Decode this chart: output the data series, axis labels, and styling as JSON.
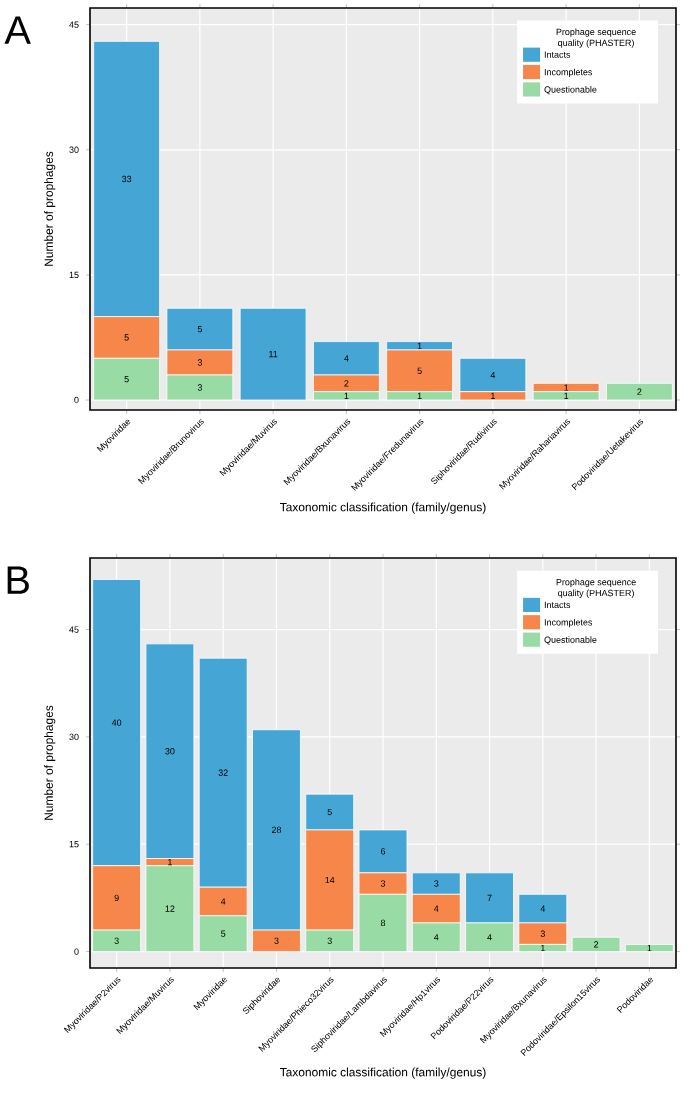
{
  "chart_data": [
    {
      "type": "bar",
      "stacked": true,
      "annotations": [
        "A"
      ],
      "xlabel": "Taxonomic classification (family/genus)",
      "ylabel": "Number of prophages",
      "legend_title": "Prophage sequence quality (PHASTER)",
      "legend": "top right",
      "grid": true,
      "data_labels": true,
      "categories": [
        "Myoviridae",
        "Myoviridae/Brunovirus",
        "Myoviridae/Muvirus",
        "Myoviridae/Bxunavirus",
        "Myoviridae/Fredunavirus",
        "Siphoviridae/Rudivirus",
        "Myoviridae/Rahariavirus",
        "Podoviridae/Uetakevirus"
      ],
      "ylim": [
        -1.2,
        47
      ],
      "yticks": [
        0,
        15,
        30,
        45
      ],
      "series": [
        {
          "name": "Questionable",
          "color": "#99dba4",
          "values": [
            5,
            3,
            null,
            1,
            1,
            null,
            1,
            2
          ]
        },
        {
          "name": "Incompletes",
          "color": "#f7864a",
          "values": [
            5,
            3,
            null,
            2,
            5,
            1,
            1,
            null
          ]
        },
        {
          "name": "Intacts",
          "color": "#45a5d5",
          "values": [
            33,
            5,
            11,
            4,
            1,
            4,
            null,
            null
          ]
        }
      ]
    },
    {
      "type": "bar",
      "stacked": true,
      "annotations": [
        "B"
      ],
      "xlabel": "Taxonomic classification (family/genus)",
      "ylabel": "Number of prophages",
      "legend_title": "Prophage sequence quality (PHASTER)",
      "legend": "top right",
      "grid": true,
      "data_labels": true,
      "categories": [
        "Myoviridae/P2virus",
        "Myoviridae/Muvirus",
        "Myoviridae",
        "Siphoviridae",
        "Myoviridae/Phieco32virus",
        "Siphoviridae/Lambdavirus",
        "Myoviridae/Hp1virus",
        "Podoviridae/P22virus",
        "Myoviridae/Bxunavirus",
        "Podoviridae/Epsilon15virus",
        "Podoviridae"
      ],
      "ylim": [
        -2.3,
        55
      ],
      "yticks": [
        0,
        15,
        30,
        45
      ],
      "series": [
        {
          "name": "Questionable",
          "color": "#99dba4",
          "values": [
            3,
            12,
            5,
            null,
            3,
            8,
            4,
            4,
            1,
            2,
            1
          ]
        },
        {
          "name": "Incompletes",
          "color": "#f7864a",
          "values": [
            9,
            1,
            4,
            3,
            14,
            3,
            4,
            null,
            3,
            null,
            null
          ]
        },
        {
          "name": "Intacts",
          "color": "#45a5d5",
          "values": [
            40,
            30,
            32,
            28,
            5,
            6,
            3,
            7,
            4,
            null,
            null
          ]
        }
      ]
    }
  ]
}
